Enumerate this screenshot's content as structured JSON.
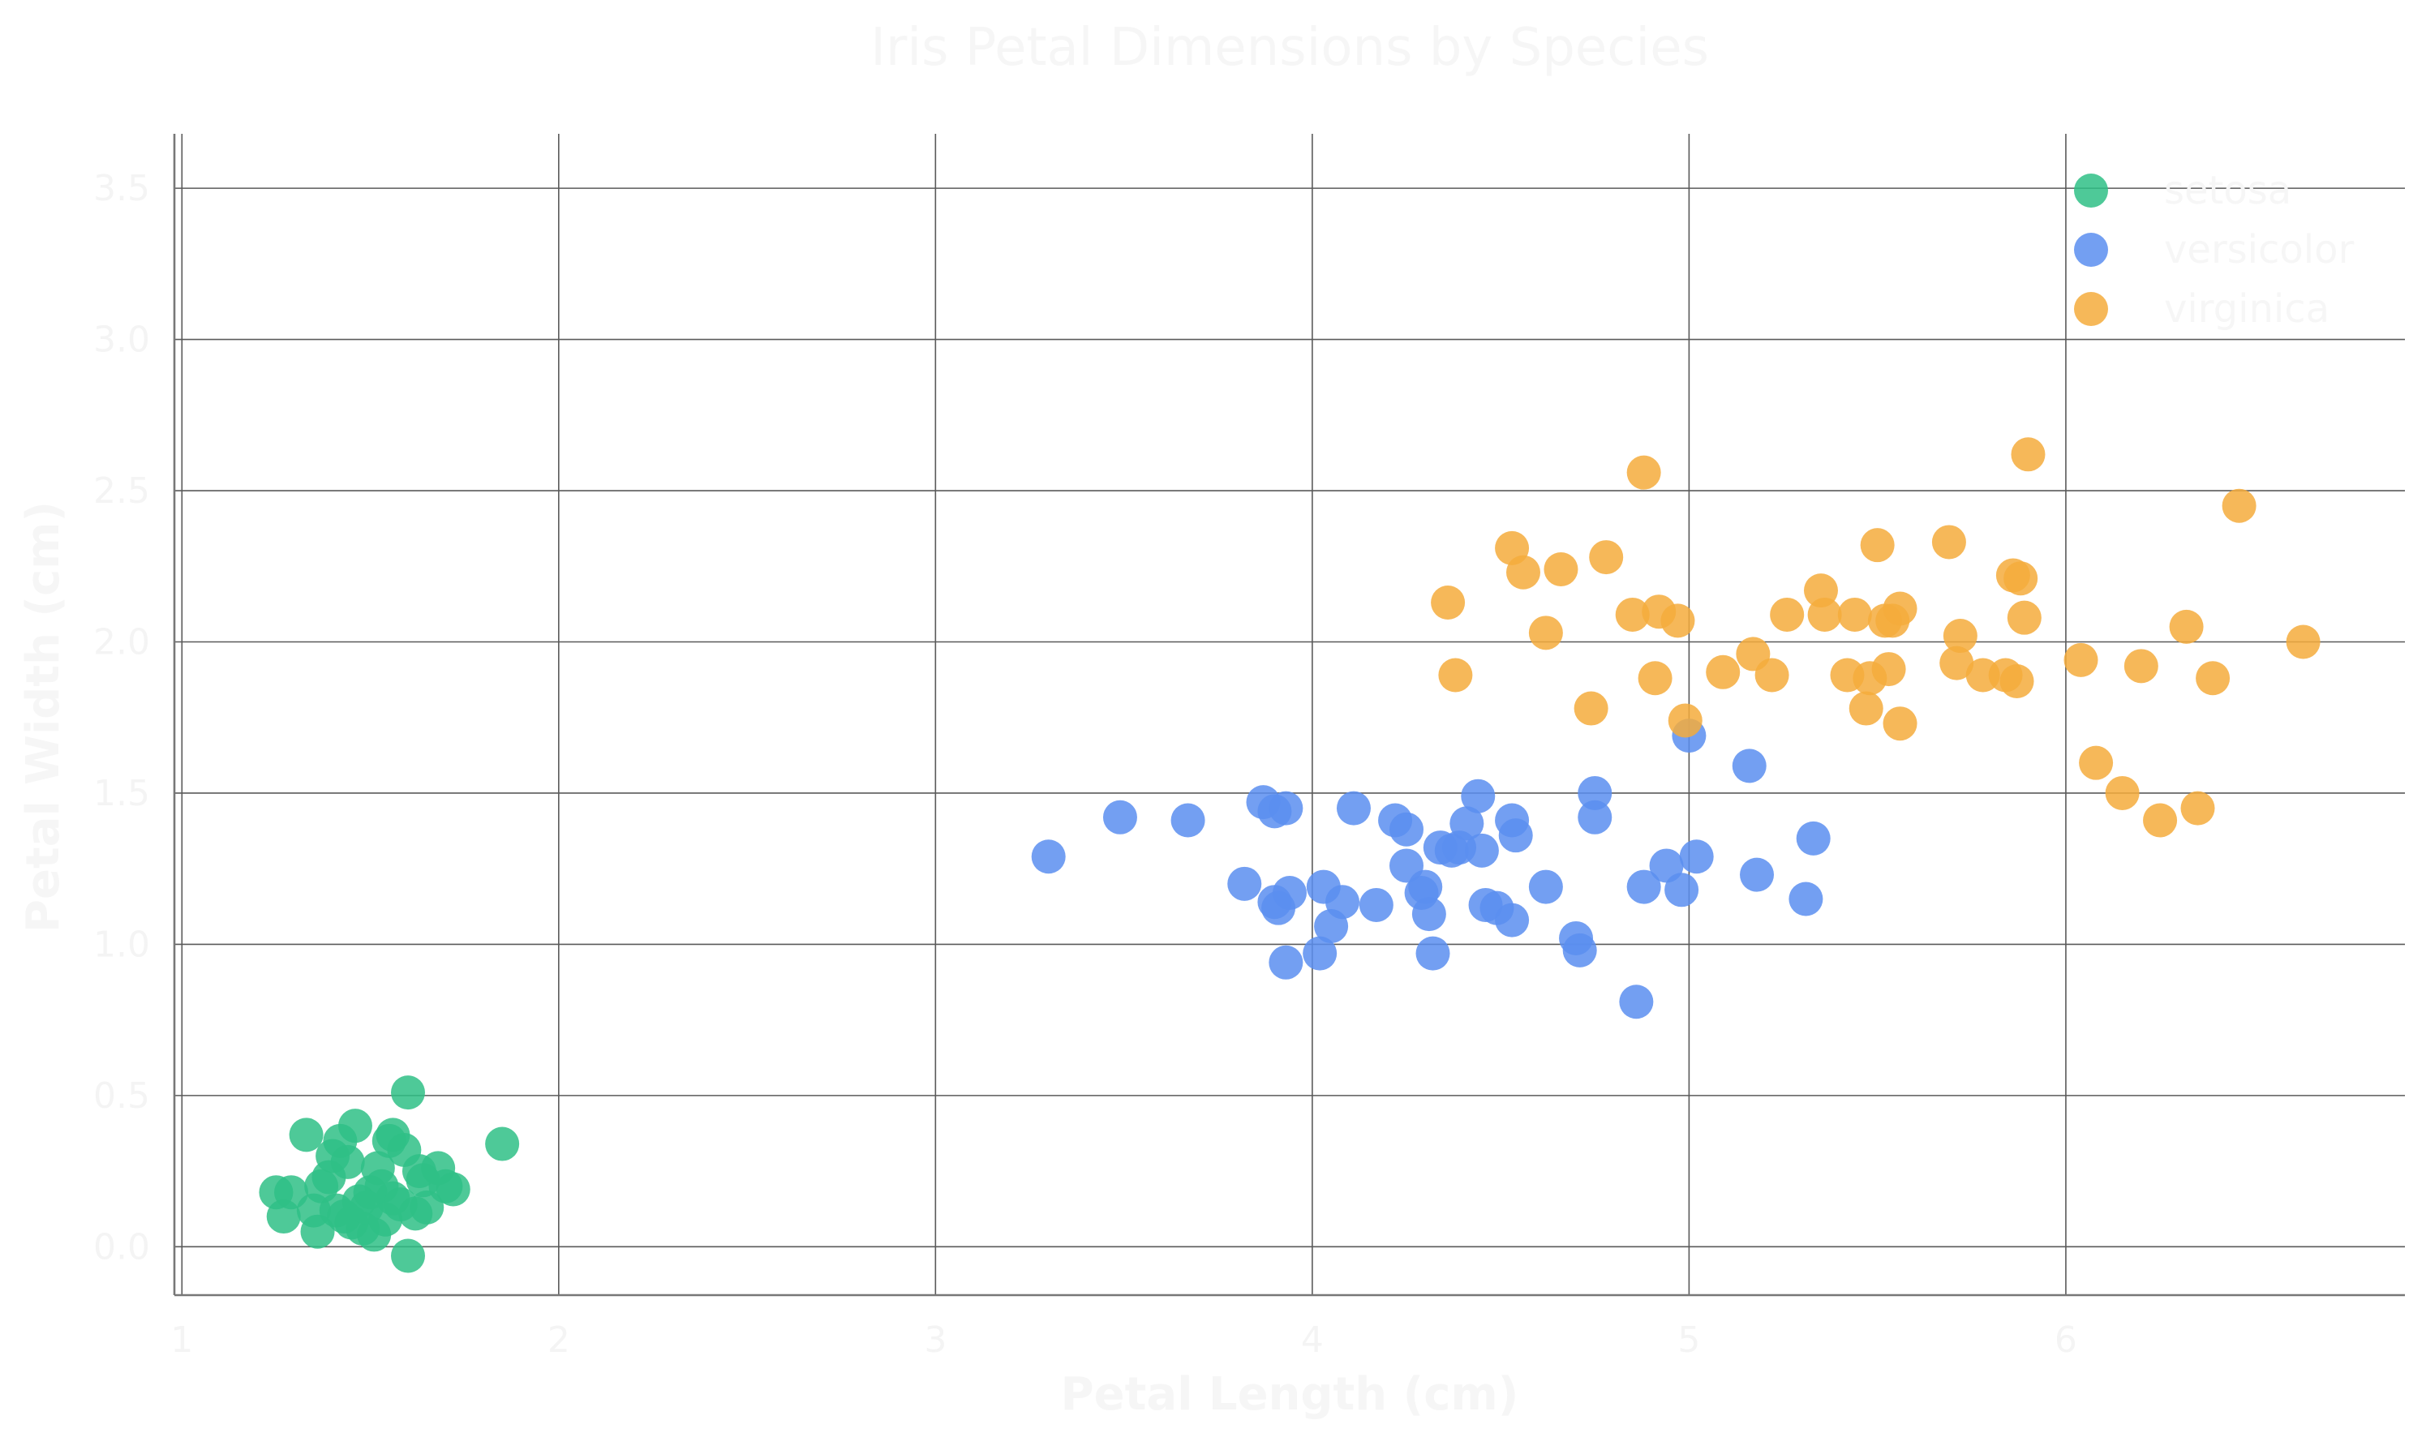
{
  "chart_data": {
    "type": "scatter",
    "title": "Iris Petal Dimensions by Species",
    "xlabel": "Petal Length (cm)",
    "ylabel": "Petal Width (cm)",
    "xlim": [
      0.98,
      6.9
    ],
    "ylim": [
      -0.16,
      3.68
    ],
    "xticks": [
      1,
      2,
      3,
      4,
      5,
      6
    ],
    "yticks": [
      0.0,
      0.5,
      1.0,
      1.5,
      2.0,
      2.5,
      3.0,
      3.5
    ],
    "xtick_labels": [
      "1",
      "2",
      "3",
      "4",
      "5",
      "6"
    ],
    "ytick_labels": [
      "0.0",
      "0.5",
      "1.0",
      "1.5",
      "2.0",
      "2.5",
      "3.0",
      "3.5"
    ],
    "grid": true,
    "legend": "top-right",
    "series": [
      {
        "name": "setosa",
        "color": "#2fbf86",
        "points": [
          [
            1.33,
            0.37
          ],
          [
            1.46,
            0.4
          ],
          [
            1.42,
            0.35
          ],
          [
            1.4,
            0.3
          ],
          [
            1.44,
            0.28
          ],
          [
            1.6,
            0.51
          ],
          [
            1.85,
            0.34
          ],
          [
            1.56,
            0.37
          ],
          [
            1.59,
            0.32
          ],
          [
            1.55,
            0.35
          ],
          [
            1.52,
            0.26
          ],
          [
            1.63,
            0.25
          ],
          [
            1.68,
            0.26
          ],
          [
            1.37,
            0.2
          ],
          [
            1.39,
            0.23
          ],
          [
            1.29,
            0.18
          ],
          [
            1.25,
            0.18
          ],
          [
            1.27,
            0.1
          ],
          [
            1.36,
            0.05
          ],
          [
            1.41,
            0.12
          ],
          [
            1.45,
            0.08
          ],
          [
            1.48,
            0.06
          ],
          [
            1.51,
            0.04
          ],
          [
            1.47,
            0.15
          ],
          [
            1.5,
            0.18
          ],
          [
            1.53,
            0.2
          ],
          [
            1.56,
            0.16
          ],
          [
            1.62,
            0.11
          ],
          [
            1.65,
            0.13
          ],
          [
            1.64,
            0.22
          ],
          [
            1.7,
            0.2
          ],
          [
            1.72,
            0.19
          ],
          [
            1.35,
            0.12
          ],
          [
            1.43,
            0.1
          ],
          [
            1.58,
            0.14
          ],
          [
            1.6,
            -0.03
          ],
          [
            1.49,
            0.13
          ],
          [
            1.54,
            0.09
          ]
        ]
      },
      {
        "name": "versicolor",
        "color": "#5b8ef0",
        "points": [
          [
            3.3,
            1.29
          ],
          [
            3.49,
            1.42
          ],
          [
            3.67,
            1.41
          ],
          [
            3.82,
            1.2
          ],
          [
            3.87,
            1.47
          ],
          [
            3.9,
            1.44
          ],
          [
            3.93,
            1.45
          ],
          [
            3.9,
            1.14
          ],
          [
            3.91,
            1.12
          ],
          [
            3.94,
            1.17
          ],
          [
            3.93,
            0.94
          ],
          [
            4.02,
            0.97
          ],
          [
            4.03,
            1.19
          ],
          [
            4.05,
            1.06
          ],
          [
            4.08,
            1.14
          ],
          [
            4.11,
            1.45
          ],
          [
            4.17,
            1.13
          ],
          [
            4.22,
            1.41
          ],
          [
            4.25,
            1.38
          ],
          [
            4.25,
            1.26
          ],
          [
            4.29,
            1.17
          ],
          [
            4.3,
            1.19
          ],
          [
            4.31,
            1.1
          ],
          [
            4.32,
            0.97
          ],
          [
            4.34,
            1.32
          ],
          [
            4.37,
            1.31
          ],
          [
            4.39,
            1.32
          ],
          [
            4.41,
            1.4
          ],
          [
            4.44,
            1.49
          ],
          [
            4.45,
            1.31
          ],
          [
            4.46,
            1.13
          ],
          [
            4.49,
            1.12
          ],
          [
            4.53,
            1.41
          ],
          [
            4.53,
            1.08
          ],
          [
            4.54,
            1.36
          ],
          [
            4.62,
            1.19
          ],
          [
            4.7,
            1.02
          ],
          [
            4.71,
            0.98
          ],
          [
            4.75,
            1.5
          ],
          [
            4.75,
            1.42
          ],
          [
            4.86,
            0.81
          ],
          [
            4.88,
            1.19
          ],
          [
            4.94,
            1.26
          ],
          [
            4.98,
            1.18
          ],
          [
            5.0,
            1.69
          ],
          [
            5.02,
            1.29
          ],
          [
            5.16,
            1.59
          ],
          [
            5.18,
            1.23
          ],
          [
            5.31,
            1.15
          ],
          [
            5.33,
            1.35
          ]
        ]
      },
      {
        "name": "virginica",
        "color": "#f5ac3c",
        "points": [
          [
            4.36,
            2.13
          ],
          [
            4.38,
            1.89
          ],
          [
            4.53,
            2.31
          ],
          [
            4.56,
            2.23
          ],
          [
            4.62,
            2.03
          ],
          [
            4.66,
            2.24
          ],
          [
            4.74,
            1.78
          ],
          [
            4.78,
            2.28
          ],
          [
            4.85,
            2.09
          ],
          [
            4.88,
            2.56
          ],
          [
            4.91,
            1.88
          ],
          [
            4.92,
            2.1
          ],
          [
            4.97,
            2.07
          ],
          [
            4.99,
            1.74
          ],
          [
            5.09,
            1.9
          ],
          [
            5.17,
            1.96
          ],
          [
            5.22,
            1.89
          ],
          [
            5.26,
            2.09
          ],
          [
            5.35,
            2.17
          ],
          [
            5.36,
            2.09
          ],
          [
            5.42,
            1.89
          ],
          [
            5.44,
            2.09
          ],
          [
            5.47,
            1.78
          ],
          [
            5.48,
            1.88
          ],
          [
            5.5,
            2.32
          ],
          [
            5.52,
            2.07
          ],
          [
            5.54,
            2.07
          ],
          [
            5.53,
            1.91
          ],
          [
            5.56,
            2.11
          ],
          [
            5.56,
            1.73
          ],
          [
            5.69,
            2.33
          ],
          [
            5.71,
            1.93
          ],
          [
            5.72,
            2.02
          ],
          [
            5.78,
            1.89
          ],
          [
            5.84,
            1.89
          ],
          [
            5.86,
            2.22
          ],
          [
            5.87,
            1.87
          ],
          [
            5.88,
            2.21
          ],
          [
            5.89,
            2.08
          ],
          [
            5.9,
            2.62
          ],
          [
            6.04,
            1.94
          ],
          [
            6.08,
            1.6
          ],
          [
            6.15,
            1.5
          ],
          [
            6.2,
            1.92
          ],
          [
            6.25,
            1.41
          ],
          [
            6.32,
            2.05
          ],
          [
            6.35,
            1.45
          ],
          [
            6.39,
            1.88
          ],
          [
            6.46,
            2.45
          ],
          [
            6.63,
            2.0
          ]
        ]
      }
    ]
  }
}
